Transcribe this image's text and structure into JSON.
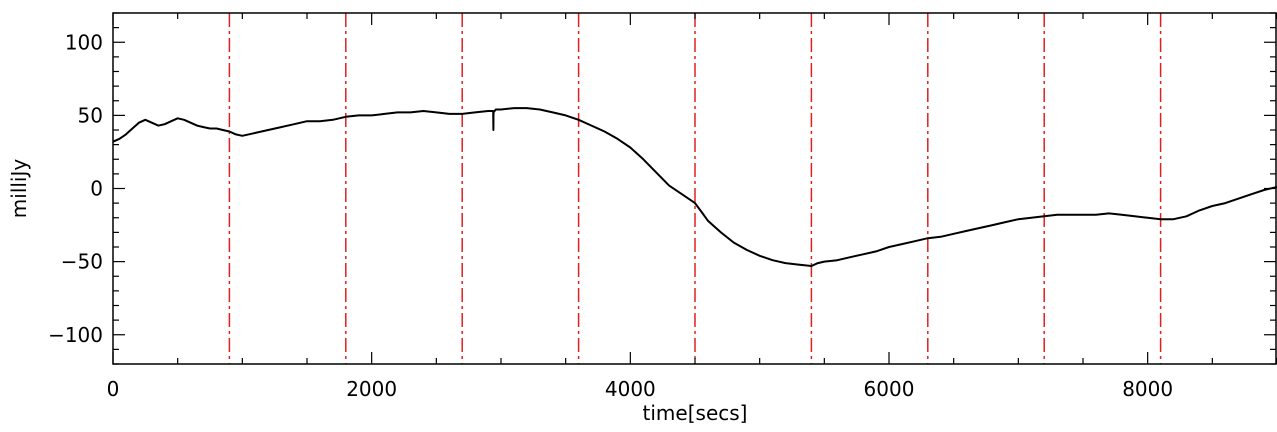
{
  "chart_data": {
    "type": "line",
    "title": "",
    "xlabel": "time[secs]",
    "ylabel": "milliJy",
    "xlim": [
      0,
      9000
    ],
    "ylim": [
      -120,
      120
    ],
    "x_ticks": [
      0,
      2000,
      4000,
      6000,
      8000
    ],
    "x_tick_labels": [
      "0",
      "2000",
      "4000",
      "6000",
      "8000"
    ],
    "y_ticks": [
      -100,
      -50,
      0,
      50,
      100
    ],
    "y_tick_labels": [
      "−100",
      "−50",
      "0",
      "50",
      "100"
    ],
    "grid": false,
    "line_color": "#000000",
    "markers": {
      "color": "#e02020",
      "style": "dash-dot",
      "x": [
        900,
        1800,
        2700,
        3600,
        4500,
        5400,
        6300,
        7200,
        8100
      ]
    },
    "series": [
      {
        "color": "#000000",
        "x": [
          0,
          50,
          100,
          150,
          200,
          250,
          300,
          350,
          400,
          450,
          500,
          550,
          600,
          650,
          700,
          750,
          800,
          850,
          900,
          950,
          1000,
          1100,
          1200,
          1300,
          1400,
          1500,
          1600,
          1700,
          1800,
          1900,
          2000,
          2100,
          2200,
          2300,
          2400,
          2500,
          2600,
          2700,
          2800,
          2900,
          2940,
          2941,
          2942,
          2960,
          3000,
          3100,
          3200,
          3300,
          3400,
          3500,
          3600,
          3700,
          3800,
          3900,
          4000,
          4100,
          4200,
          4300,
          4400,
          4500,
          4550,
          4600,
          4700,
          4800,
          4900,
          5000,
          5100,
          5200,
          5300,
          5400,
          5450,
          5500,
          5600,
          5700,
          5800,
          5900,
          6000,
          6100,
          6200,
          6300,
          6400,
          6500,
          6600,
          6700,
          6800,
          6900,
          7000,
          7100,
          7200,
          7300,
          7400,
          7500,
          7600,
          7700,
          7800,
          7900,
          8000,
          8100,
          8200,
          8300,
          8400,
          8500,
          8600,
          8700,
          8800,
          8900,
          9000
        ],
        "y": [
          32,
          34,
          37,
          41,
          45,
          47,
          45,
          43,
          44,
          46,
          48,
          47,
          45,
          43,
          42,
          41,
          41,
          40,
          39,
          37,
          36,
          38,
          40,
          42,
          44,
          46,
          46,
          47,
          49,
          50,
          50,
          51,
          52,
          52,
          53,
          52,
          51,
          51,
          52,
          53,
          53,
          40,
          52,
          54,
          54,
          55,
          55,
          54,
          52,
          50,
          47,
          43,
          39,
          34,
          28,
          20,
          11,
          2,
          -4,
          -10,
          -16,
          -22,
          -30,
          -37,
          -42,
          -46,
          -49,
          -51,
          -52,
          -53,
          -51,
          -50,
          -49,
          -47,
          -45,
          -43,
          -40,
          -38,
          -36,
          -34,
          -33,
          -31,
          -29,
          -27,
          -25,
          -23,
          -21,
          -20,
          -19,
          -18,
          -18,
          -18,
          -18,
          -17,
          -18,
          -19,
          -20,
          -21,
          -21,
          -19,
          -15,
          -12,
          -10,
          -7,
          -4,
          -1,
          1
        ]
      }
    ]
  }
}
